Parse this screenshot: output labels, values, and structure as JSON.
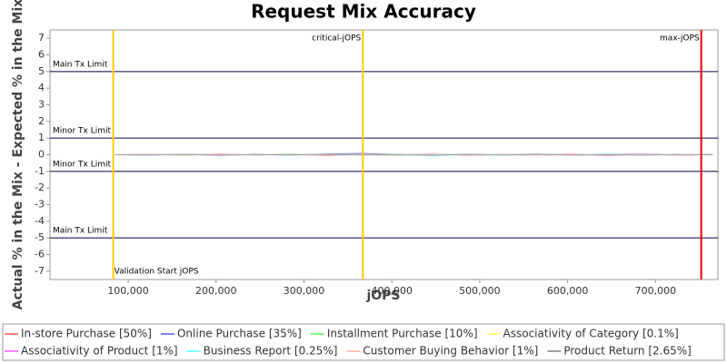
{
  "chart_data": {
    "type": "line",
    "title": "Request Mix Accuracy",
    "x_label": "jOPS",
    "y_label": "Actual % in the Mix - Expected % in the Mix",
    "xlim": [
      11000,
      771000
    ],
    "ylim": [
      -7.5,
      7.5
    ],
    "xticks": [
      {
        "value": 100000,
        "label": "100,000"
      },
      {
        "value": 200000,
        "label": "200,000"
      },
      {
        "value": 300000,
        "label": "300,000"
      },
      {
        "value": 400000,
        "label": "400,000"
      },
      {
        "value": 500000,
        "label": "500,000"
      },
      {
        "value": 600000,
        "label": "600,000"
      },
      {
        "value": 700000,
        "label": "700,000"
      }
    ],
    "yticks": [
      -7,
      -6,
      -5,
      -4,
      -3,
      -2,
      -1,
      0,
      1,
      2,
      3,
      4,
      5,
      6,
      7
    ],
    "limit_lines": [
      {
        "value": 5,
        "label": "Main Tx Limit",
        "color": "#000050"
      },
      {
        "value": 1,
        "label": "Minor Tx Limit",
        "color": "#000050"
      },
      {
        "value": -1,
        "label": "Minor Tx Limit",
        "color": "#000050"
      },
      {
        "value": -5,
        "label": "Main Tx Limit",
        "color": "#000050"
      }
    ],
    "markers": [
      {
        "value": 83000,
        "label": "Validation Start jOPS",
        "color": "#ffcc00",
        "label_position": "bottom"
      },
      {
        "value": 367000,
        "label": "critical-jOPS",
        "color": "#ffcc00",
        "label_position": "top"
      },
      {
        "value": 752000,
        "label": "max-jOPS",
        "color": "#ee0000",
        "label_position": "top"
      }
    ],
    "x": [
      85000,
      125000,
      165000,
      205000,
      245000,
      285000,
      325000,
      365000,
      405000,
      445000,
      485000,
      525000,
      565000,
      605000,
      645000,
      685000,
      725000,
      765000
    ],
    "series": [
      {
        "name": "In-store Purchase [50%]",
        "color": "#ff8080",
        "values": [
          0,
          0.02,
          -0.03,
          0.05,
          -0.02,
          0.04,
          -0.06,
          0.03,
          -0.02,
          0.05,
          -0.04,
          0.02,
          -0.03,
          0.04,
          -0.05,
          0.03,
          -0.02,
          0.01
        ]
      },
      {
        "name": "Online Purchase [35%]",
        "color": "#8080ff",
        "values": [
          0,
          -0.02,
          0.03,
          -0.04,
          0.02,
          -0.03,
          0.05,
          0.08,
          0.02,
          -0.04,
          0.03,
          -0.02,
          0.04,
          -0.03,
          0.02,
          0.05,
          -0.03,
          0.02
        ]
      },
      {
        "name": "Installment Purchase [10%]",
        "color": "#80ff80",
        "values": [
          0,
          0.01,
          -0.02,
          0.02,
          -0.01,
          0.03,
          -0.02,
          0.01,
          -0.03,
          0.02,
          0.01,
          -0.02,
          0.02,
          -0.01,
          0.03,
          -0.02,
          0.01,
          -0.01
        ]
      },
      {
        "name": "Associativity of Category [0.1%]",
        "color": "#ffff80",
        "values": [
          0,
          0.0,
          0.01,
          -0.01,
          0.0,
          0.01,
          -0.01,
          0.0,
          0.01,
          -0.01,
          0.0,
          0.01,
          -0.01,
          0.0,
          0.01,
          -0.01,
          0.0,
          0.0
        ]
      },
      {
        "name": "Associativity of Product [1%]",
        "color": "#ff80ff",
        "values": [
          0,
          0.01,
          -0.01,
          0.02,
          -0.01,
          0.01,
          -0.02,
          0.01,
          -0.01,
          0.02,
          -0.01,
          0.01,
          -0.02,
          0.01,
          -0.01,
          0.02,
          -0.01,
          0.01
        ]
      },
      {
        "name": "Business Report [0.25%]",
        "color": "#80ffff",
        "values": [
          0,
          -0.01,
          0.02,
          -0.01,
          0.01,
          -0.02,
          0.03,
          -0.01,
          0.02,
          -0.06,
          0.01,
          -0.02,
          0.01,
          -0.01,
          0.02,
          -0.01,
          0.01,
          -0.01
        ]
      },
      {
        "name": "Customer Buying Behavior [1%]",
        "color": "#ffc0c0",
        "values": [
          0,
          0.02,
          -0.01,
          0.03,
          -0.02,
          0.01,
          -0.03,
          0.02,
          -0.01,
          0.04,
          -0.02,
          0.01,
          -0.03,
          0.02,
          -0.01,
          0.03,
          -0.02,
          0.01
        ]
      },
      {
        "name": "Product Return [2.65%]",
        "color": "#a0a0a0",
        "values": [
          0,
          -0.01,
          0.02,
          -0.02,
          0.01,
          -0.01,
          0.03,
          -0.02,
          0.01,
          -0.03,
          0.02,
          -0.01,
          0.02,
          -0.02,
          0.01,
          -0.03,
          0.02,
          -0.01
        ]
      }
    ]
  }
}
